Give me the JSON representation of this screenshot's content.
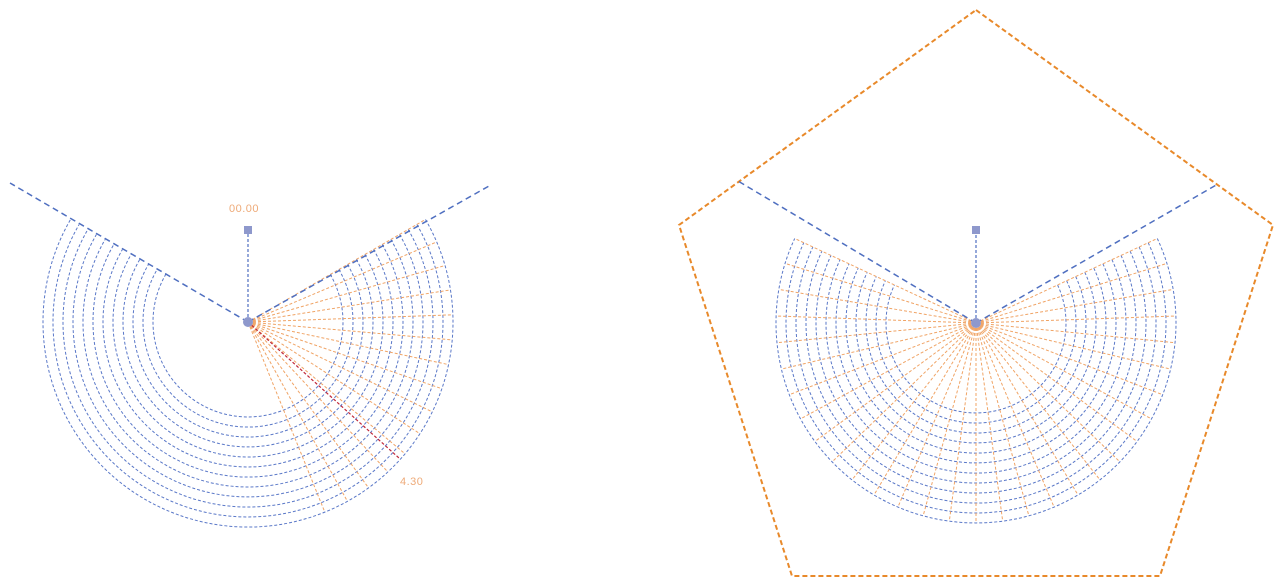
{
  "colors": {
    "background": "#ffffff",
    "guide_blue": "#4f6fc0",
    "ring_blue": "#5a78c8",
    "ray_orange": "#f0a466",
    "frame_orange": "#e8892a",
    "measure_red": "#c0283a",
    "handle": "#8e98cc",
    "label_orange": "#eeaa78"
  },
  "labels": {
    "left_top": "00.00",
    "left_measure": "4.30"
  },
  "icons": {
    "handle": "square-handle-icon",
    "pivot": "pivot-point-icon"
  }
}
